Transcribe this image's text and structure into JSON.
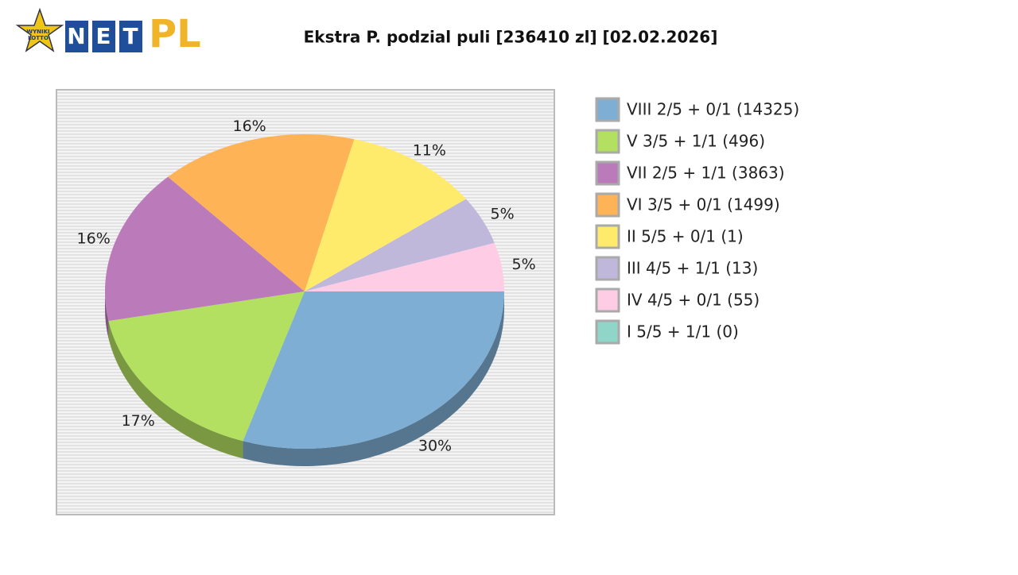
{
  "logo": {
    "small": [
      "WYNIKI",
      "LOTTO"
    ],
    "letters": [
      "N",
      "E",
      "T"
    ],
    "brand": "PL"
  },
  "chart_data": {
    "type": "pie",
    "title": "Ekstra P. podzial puli [236410 zl] [02.02.2026]",
    "categories": [
      "VIII 2/5 + 0/1 (14325)",
      "V 3/5 + 1/1 (496)",
      "VII 2/5 + 1/1 (3863)",
      "VI 3/5 + 0/1 (1499)",
      "II 5/5 + 0/1 (1)",
      "III 4/5 + 1/1 (13)",
      "IV 4/5 + 0/1 (55)",
      "I 5/5 + 1/1 (0)"
    ],
    "values": [
      30,
      17,
      16,
      16,
      11,
      5,
      5,
      0
    ],
    "value_labels": [
      "30%",
      "17%",
      "16%",
      "16%",
      "11%",
      "5%",
      "5%",
      null
    ],
    "colors": [
      "#7eaed3",
      "#b3e061",
      "#bb7bba",
      "#ffb357",
      "#ffeb6b",
      "#c0b8da",
      "#ffcce6",
      "#8fd6c8"
    ]
  }
}
